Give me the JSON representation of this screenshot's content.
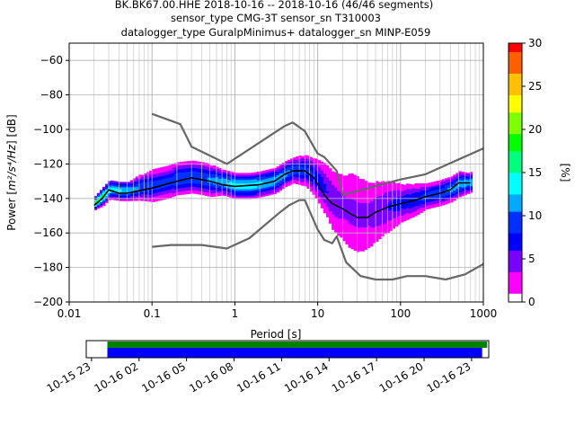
{
  "chart_data": [
    {
      "type": "heatmap",
      "title_lines": [
        "BK.BK67.00.HHE   2018-10-16 -- 2018-10-16  (46/46 segments)",
        "sensor_type CMG-3T sensor_sn T310003",
        "datalogger_type GuralpMinimus+ datalogger_sn MINP-E059"
      ],
      "xlabel": "Period [s]",
      "ylabel_prefix": "Power [",
      "ylabel_unit": "m²/s⁴/Hz",
      "ylabel_suffix": "] [dB]",
      "x_scale": "log",
      "xlim": [
        0.01,
        1000
      ],
      "ylim": [
        -200,
        -50
      ],
      "x_ticks": [
        {
          "value": 0.01,
          "label": "0.01"
        },
        {
          "value": 0.1,
          "label": "0.1"
        },
        {
          "value": 1,
          "label": "1"
        },
        {
          "value": 10,
          "label": "10"
        },
        {
          "value": 100,
          "label": "100"
        },
        {
          "value": 1000,
          "label": "1000"
        }
      ],
      "y_ticks": [
        {
          "value": -60,
          "label": "−60"
        },
        {
          "value": -80,
          "label": "−80"
        },
        {
          "value": -100,
          "label": "−100"
        },
        {
          "value": -120,
          "label": "−120"
        },
        {
          "value": -140,
          "label": "−140"
        },
        {
          "value": -160,
          "label": "−160"
        },
        {
          "value": -180,
          "label": "−180"
        },
        {
          "value": -200,
          "label": "−200"
        }
      ],
      "grid": true,
      "colorbar": {
        "label": "[%]",
        "range": [
          0,
          30
        ],
        "ticks": [
          {
            "value": 0,
            "label": "0"
          },
          {
            "value": 5,
            "label": "5"
          },
          {
            "value": 10,
            "label": "10"
          },
          {
            "value": 15,
            "label": "15"
          },
          {
            "value": 20,
            "label": "20"
          },
          {
            "value": 25,
            "label": "25"
          },
          {
            "value": 30,
            "label": "30"
          }
        ],
        "colors": [
          "#ffffff",
          "#ff00ff",
          "#7a00ff",
          "#0000ff",
          "#0030ff",
          "#00aaff",
          "#00ffff",
          "#00ff80",
          "#00ff00",
          "#80ff00",
          "#ffff00",
          "#ffc000",
          "#ff6000",
          "#ff0000"
        ]
      },
      "psd_density": [
        {
          "period": 0.02,
          "center": -143,
          "spread": 2,
          "pct": 18
        },
        {
          "period": 0.025,
          "center": -139,
          "spread": 3,
          "pct": 16
        },
        {
          "period": 0.03,
          "center": -135,
          "spread": 3,
          "pct": 14
        },
        {
          "period": 0.04,
          "center": -136,
          "spread": 3,
          "pct": 13
        },
        {
          "period": 0.05,
          "center": -136,
          "spread": 3,
          "pct": 12
        },
        {
          "period": 0.07,
          "center": -134,
          "spread": 4,
          "pct": 10
        },
        {
          "period": 0.1,
          "center": -133,
          "spread": 5,
          "pct": 9
        },
        {
          "period": 0.15,
          "center": -131,
          "spread": 5,
          "pct": 9
        },
        {
          "period": 0.2,
          "center": -129,
          "spread": 5,
          "pct": 10
        },
        {
          "period": 0.3,
          "center": -128,
          "spread": 5,
          "pct": 10
        },
        {
          "period": 0.4,
          "center": -129,
          "spread": 5,
          "pct": 10
        },
        {
          "period": 0.5,
          "center": -130,
          "spread": 5,
          "pct": 11
        },
        {
          "period": 0.7,
          "center": -131,
          "spread": 4,
          "pct": 12
        },
        {
          "period": 1,
          "center": -133,
          "spread": 4,
          "pct": 14
        },
        {
          "period": 1.5,
          "center": -133,
          "spread": 4,
          "pct": 14
        },
        {
          "period": 2,
          "center": -132,
          "spread": 4,
          "pct": 13
        },
        {
          "period": 3,
          "center": -130,
          "spread": 4,
          "pct": 12
        },
        {
          "period": 4,
          "center": -126,
          "spread": 4,
          "pct": 11
        },
        {
          "period": 5,
          "center": -124,
          "spread": 4,
          "pct": 10
        },
        {
          "period": 7,
          "center": -124,
          "spread": 5,
          "pct": 9
        },
        {
          "period": 9,
          "center": -128,
          "spread": 6,
          "pct": 8
        },
        {
          "period": 12,
          "center": -135,
          "spread": 8,
          "pct": 6
        },
        {
          "period": 15,
          "center": -142,
          "spread": 10,
          "pct": 5
        },
        {
          "period": 20,
          "center": -146,
          "spread": 12,
          "pct": 4
        },
        {
          "period": 25,
          "center": -148,
          "spread": 14,
          "pct": 4
        },
        {
          "period": 30,
          "center": -150,
          "spread": 14,
          "pct": 4
        },
        {
          "period": 40,
          "center": -150,
          "spread": 12,
          "pct": 4
        },
        {
          "period": 50,
          "center": -148,
          "spread": 10,
          "pct": 5
        },
        {
          "period": 70,
          "center": -145,
          "spread": 8,
          "pct": 6
        },
        {
          "period": 100,
          "center": -143,
          "spread": 6,
          "pct": 7
        },
        {
          "period": 150,
          "center": -141,
          "spread": 5,
          "pct": 8
        },
        {
          "period": 200,
          "center": -139,
          "spread": 4,
          "pct": 9
        },
        {
          "period": 300,
          "center": -137,
          "spread": 4,
          "pct": 10
        },
        {
          "period": 400,
          "center": -135,
          "spread": 4,
          "pct": 11
        },
        {
          "period": 500,
          "center": -132,
          "spread": 4,
          "pct": 12
        },
        {
          "period": 700,
          "center": -131,
          "spread": 3,
          "pct": 12
        }
      ],
      "series": [
        {
          "name": "",
          "color": "#666666",
          "points": [
            [
              0.1,
              -91
            ],
            [
              0.22,
              -97
            ],
            [
              0.3,
              -110
            ],
            [
              0.8,
              -120
            ],
            [
              4,
              -98
            ],
            [
              5,
              -96
            ],
            [
              7,
              -101
            ],
            [
              10,
              -114
            ],
            [
              12,
              -116
            ],
            [
              17,
              -124
            ],
            [
              20,
              -138
            ],
            [
              100,
              -129
            ],
            [
              200,
              -126
            ],
            [
              1000,
              -111
            ]
          ]
        },
        {
          "name": "",
          "color": "#666666",
          "points": [
            [
              0.1,
              -168
            ],
            [
              0.17,
              -167
            ],
            [
              0.4,
              -167
            ],
            [
              0.8,
              -169
            ],
            [
              1.5,
              -163
            ],
            [
              3.5,
              -148
            ],
            [
              4.5,
              -144
            ],
            [
              6,
              -141
            ],
            [
              7,
              -141
            ],
            [
              10,
              -158
            ],
            [
              12,
              -164
            ],
            [
              15,
              -166
            ],
            [
              17,
              -162
            ],
            [
              22,
              -177
            ],
            [
              33,
              -185
            ],
            [
              50,
              -187
            ],
            [
              80,
              -187
            ],
            [
              120,
              -185
            ],
            [
              200,
              -185
            ],
            [
              350,
              -187
            ],
            [
              600,
              -184
            ],
            [
              1000,
              -178
            ]
          ]
        },
        {
          "name": "",
          "color": "#000000",
          "points": [
            [
              0.02,
              -144
            ],
            [
              0.025,
              -140
            ],
            [
              0.03,
              -135
            ],
            [
              0.04,
              -137
            ],
            [
              0.05,
              -137
            ],
            [
              0.1,
              -134
            ],
            [
              0.2,
              -130
            ],
            [
              0.3,
              -128
            ],
            [
              0.5,
              -130
            ],
            [
              0.7,
              -132
            ],
            [
              1,
              -133
            ],
            [
              2,
              -132
            ],
            [
              3,
              -130
            ],
            [
              4,
              -126
            ],
            [
              5,
              -124
            ],
            [
              7,
              -124
            ],
            [
              9,
              -128
            ],
            [
              12,
              -138
            ],
            [
              15,
              -143
            ],
            [
              20,
              -146
            ],
            [
              25,
              -149
            ],
            [
              30,
              -151
            ],
            [
              40,
              -151
            ],
            [
              50,
              -148
            ],
            [
              70,
              -145
            ],
            [
              100,
              -143
            ],
            [
              150,
              -141
            ],
            [
              200,
              -139
            ],
            [
              300,
              -137
            ],
            [
              400,
              -135
            ],
            [
              500,
              -131
            ],
            [
              700,
              -131
            ]
          ]
        }
      ]
    },
    {
      "type": "bar",
      "x_ticks": [
        "10-15 23",
        "10-16 02",
        "10-16 05",
        "10-16 08",
        "10-16 11",
        "10-16 14",
        "10-16 17",
        "10-16 20",
        "10-16 23"
      ],
      "xlim": [
        "2018-10-15 22:40",
        "2018-10-17 00:05"
      ],
      "series": [
        {
          "name": "",
          "color": "#008000",
          "start": "2018-10-16 00:00",
          "end": "2018-10-16 23:59"
        },
        {
          "name": "",
          "color": "#0000ff",
          "start": "2018-10-16 00:00",
          "end": "2018-10-16 23:40"
        }
      ]
    }
  ]
}
